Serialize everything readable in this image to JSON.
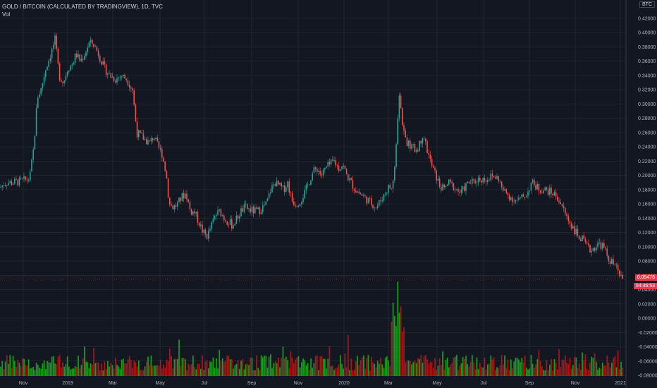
{
  "legend": {
    "title": "GOLD / BITCOIN (CALCULATED BY TRADINGVIEW), 1D, TVC",
    "volume_label": "Vol"
  },
  "price_axis": {
    "currency": "BTC",
    "last_price": "0.05476",
    "countdown": "04:46:53"
  },
  "colors": {
    "up": "#26a69a",
    "down": "#ef5350",
    "vol_up": "#17b817",
    "vol_down": "#c41616",
    "last_price_tag": "#f23645"
  },
  "chart_data": {
    "type": "candlestick",
    "title": "GOLD / BITCOIN (CALCULATED BY TRADINGVIEW), 1D, TVC",
    "x_ticks": [
      "Nov",
      "2019",
      "Mar",
      "May",
      "Jul",
      "Sep",
      "Nov",
      "2020",
      "Mar",
      "May",
      "Jul",
      "Sep",
      "Nov",
      "2021"
    ],
    "y_ticks": [
      "0.42000",
      "0.40000",
      "0.38000",
      "0.36000",
      "0.34000",
      "0.32000",
      "0.30000",
      "0.28000",
      "0.26000",
      "0.24000",
      "0.22000",
      "0.20000",
      "0.18000",
      "0.16000",
      "0.14000",
      "0.12000",
      "0.10000",
      "0.08000",
      "0.06000",
      "0.04000",
      "0.02000",
      "0.00000",
      "-0.02000",
      "-0.04000",
      "-0.06000",
      "-0.08000"
    ],
    "ylim": [
      -0.08,
      0.42
    ],
    "price_path": [
      [
        0,
        0.183
      ],
      [
        8,
        0.19
      ],
      [
        18,
        0.19
      ],
      [
        30,
        0.192
      ],
      [
        42,
        0.195
      ],
      [
        48,
        0.24
      ],
      [
        53,
        0.31
      ],
      [
        58,
        0.32
      ],
      [
        65,
        0.35
      ],
      [
        72,
        0.37
      ],
      [
        78,
        0.39
      ],
      [
        84,
        0.34
      ],
      [
        90,
        0.33
      ],
      [
        96,
        0.35
      ],
      [
        102,
        0.355
      ],
      [
        108,
        0.37
      ],
      [
        114,
        0.36
      ],
      [
        120,
        0.37
      ],
      [
        126,
        0.385
      ],
      [
        132,
        0.385
      ],
      [
        140,
        0.37
      ],
      [
        148,
        0.35
      ],
      [
        156,
        0.34
      ],
      [
        164,
        0.335
      ],
      [
        172,
        0.34
      ],
      [
        180,
        0.335
      ],
      [
        188,
        0.32
      ],
      [
        194,
        0.26
      ],
      [
        200,
        0.255
      ],
      [
        206,
        0.25
      ],
      [
        212,
        0.245
      ],
      [
        218,
        0.255
      ],
      [
        224,
        0.24
      ],
      [
        230,
        0.23
      ],
      [
        236,
        0.2
      ],
      [
        240,
        0.16
      ],
      [
        246,
        0.155
      ],
      [
        252,
        0.16
      ],
      [
        258,
        0.17
      ],
      [
        264,
        0.175
      ],
      [
        270,
        0.15
      ],
      [
        276,
        0.148
      ],
      [
        282,
        0.135
      ],
      [
        288,
        0.12
      ],
      [
        294,
        0.115
      ],
      [
        300,
        0.13
      ],
      [
        306,
        0.145
      ],
      [
        312,
        0.15
      ],
      [
        318,
        0.14
      ],
      [
        324,
        0.135
      ],
      [
        330,
        0.13
      ],
      [
        336,
        0.14
      ],
      [
        342,
        0.15
      ],
      [
        348,
        0.155
      ],
      [
        354,
        0.152
      ],
      [
        360,
        0.15
      ],
      [
        366,
        0.15
      ],
      [
        372,
        0.155
      ],
      [
        378,
        0.16
      ],
      [
        384,
        0.18
      ],
      [
        390,
        0.19
      ],
      [
        396,
        0.185
      ],
      [
        402,
        0.18
      ],
      [
        408,
        0.19
      ],
      [
        414,
        0.165
      ],
      [
        420,
        0.16
      ],
      [
        426,
        0.165
      ],
      [
        432,
        0.175
      ],
      [
        438,
        0.19
      ],
      [
        444,
        0.205
      ],
      [
        450,
        0.21
      ],
      [
        456,
        0.2
      ],
      [
        462,
        0.21
      ],
      [
        468,
        0.215
      ],
      [
        474,
        0.22
      ],
      [
        480,
        0.21
      ],
      [
        486,
        0.215
      ],
      [
        492,
        0.2
      ],
      [
        498,
        0.19
      ],
      [
        504,
        0.18
      ],
      [
        510,
        0.175
      ],
      [
        516,
        0.17
      ],
      [
        522,
        0.165
      ],
      [
        528,
        0.16
      ],
      [
        534,
        0.155
      ],
      [
        540,
        0.165
      ],
      [
        546,
        0.175
      ],
      [
        552,
        0.185
      ],
      [
        556,
        0.18
      ],
      [
        560,
        0.21
      ],
      [
        563,
        0.26
      ],
      [
        566,
        0.32
      ],
      [
        569,
        0.29
      ],
      [
        572,
        0.26
      ],
      [
        578,
        0.245
      ],
      [
        584,
        0.24
      ],
      [
        590,
        0.235
      ],
      [
        596,
        0.245
      ],
      [
        600,
        0.26
      ],
      [
        606,
        0.235
      ],
      [
        612,
        0.215
      ],
      [
        618,
        0.2
      ],
      [
        624,
        0.185
      ],
      [
        630,
        0.18
      ],
      [
        636,
        0.19
      ],
      [
        642,
        0.185
      ],
      [
        648,
        0.18
      ],
      [
        654,
        0.175
      ],
      [
        660,
        0.185
      ],
      [
        666,
        0.19
      ],
      [
        672,
        0.19
      ],
      [
        678,
        0.195
      ],
      [
        684,
        0.195
      ],
      [
        690,
        0.195
      ],
      [
        696,
        0.198
      ],
      [
        702,
        0.198
      ],
      [
        708,
        0.195
      ],
      [
        712,
        0.18
      ],
      [
        718,
        0.175
      ],
      [
        724,
        0.17
      ],
      [
        730,
        0.165
      ],
      [
        736,
        0.165
      ],
      [
        742,
        0.17
      ],
      [
        748,
        0.175
      ],
      [
        754,
        0.19
      ],
      [
        760,
        0.185
      ],
      [
        766,
        0.18
      ],
      [
        772,
        0.18
      ],
      [
        778,
        0.178
      ],
      [
        784,
        0.175
      ],
      [
        790,
        0.17
      ],
      [
        796,
        0.16
      ],
      [
        802,
        0.145
      ],
      [
        808,
        0.135
      ],
      [
        814,
        0.125
      ],
      [
        820,
        0.115
      ],
      [
        826,
        0.11
      ],
      [
        832,
        0.1
      ],
      [
        838,
        0.095
      ],
      [
        844,
        0.1
      ],
      [
        850,
        0.105
      ],
      [
        856,
        0.1
      ],
      [
        862,
        0.085
      ],
      [
        868,
        0.078
      ],
      [
        874,
        0.07
      ],
      [
        880,
        0.06
      ],
      [
        884,
        0.055
      ]
    ],
    "series": [
      {
        "name": "GOLD / BITCOIN",
        "role": "price",
        "chart": "candlestick"
      },
      {
        "name": "Vol",
        "role": "volume",
        "chart": "bar"
      }
    ],
    "grid": true,
    "legend_position": "top-left"
  }
}
